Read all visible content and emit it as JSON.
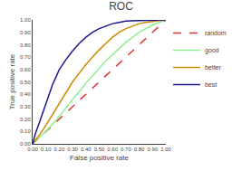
{
  "chart_data": {
    "type": "line",
    "title": "ROC",
    "x_label": "False positive rate",
    "y_label": "True positive rate",
    "xlim": [
      0,
      1.0
    ],
    "ylim": [
      0,
      1.0
    ],
    "xticks": [
      {
        "value": 0.0,
        "label": "0.00"
      },
      {
        "value": 0.1,
        "label": "0.10"
      },
      {
        "value": 0.2,
        "label": "0.20"
      },
      {
        "value": 0.3,
        "label": "0.30"
      },
      {
        "value": 0.4,
        "label": "0.40"
      },
      {
        "value": 0.5,
        "label": "0.50"
      },
      {
        "value": 0.6,
        "label": "0.60"
      },
      {
        "value": 0.7,
        "label": "0.70"
      },
      {
        "value": 0.8,
        "label": "0.80"
      },
      {
        "value": 0.9,
        "label": "0.90"
      },
      {
        "value": 1.0,
        "label": "1.00"
      }
    ],
    "yticks": [
      {
        "value": 0.0,
        "label": "0.00"
      },
      {
        "value": 0.1,
        "label": "0.10"
      },
      {
        "value": 0.2,
        "label": "0.20"
      },
      {
        "value": 0.3,
        "label": "0.30"
      },
      {
        "value": 0.4,
        "label": "0.40"
      },
      {
        "value": 0.5,
        "label": "0.50"
      },
      {
        "value": 0.6,
        "label": "0.60"
      },
      {
        "value": 0.7,
        "label": "0.70"
      },
      {
        "value": 0.8,
        "label": "0.80"
      },
      {
        "value": 0.9,
        "label": "0.90"
      },
      {
        "value": 1.0,
        "label": "1.00"
      }
    ],
    "grid": false,
    "legend": "right",
    "series": [
      {
        "name": "random",
        "color": "#e03030",
        "line_style": "dashed",
        "x": [
          0.0,
          1.0
        ],
        "values": [
          0.0,
          1.0
        ]
      },
      {
        "name": "good",
        "color": "#90ee90",
        "line_style": "solid",
        "x": [
          0.0,
          0.05,
          0.1,
          0.15,
          0.2,
          0.25,
          0.3,
          0.35,
          0.4,
          0.45,
          0.5,
          0.55,
          0.6,
          0.65,
          0.7,
          0.75,
          0.8,
          0.85,
          0.9,
          0.95,
          1.0
        ],
        "values": [
          0.0,
          0.05,
          0.1,
          0.16,
          0.22,
          0.29,
          0.36,
          0.42,
          0.49,
          0.55,
          0.61,
          0.67,
          0.72,
          0.77,
          0.82,
          0.86,
          0.9,
          0.93,
          0.96,
          0.98,
          1.0
        ]
      },
      {
        "name": "better",
        "color": "#cc8800",
        "line_style": "solid",
        "x": [
          0.0,
          0.05,
          0.1,
          0.15,
          0.2,
          0.25,
          0.3,
          0.35,
          0.4,
          0.45,
          0.5,
          0.55,
          0.6,
          0.65,
          0.7,
          0.75,
          0.8,
          0.85,
          0.9,
          0.95,
          1.0
        ],
        "values": [
          0.0,
          0.07,
          0.15,
          0.24,
          0.33,
          0.42,
          0.5,
          0.57,
          0.64,
          0.7,
          0.76,
          0.81,
          0.86,
          0.9,
          0.93,
          0.95,
          0.97,
          0.98,
          0.99,
          0.995,
          1.0
        ]
      },
      {
        "name": "best",
        "color": "#1a1a8c",
        "line_style": "solid",
        "x": [
          0.0,
          0.02,
          0.05,
          0.08,
          0.1,
          0.13,
          0.15,
          0.18,
          0.2,
          0.25,
          0.3,
          0.35,
          0.4,
          0.45,
          0.5,
          0.55,
          0.6,
          0.65,
          0.7,
          0.8,
          0.9,
          1.0
        ],
        "values": [
          0.0,
          0.08,
          0.17,
          0.26,
          0.33,
          0.42,
          0.48,
          0.55,
          0.6,
          0.68,
          0.75,
          0.81,
          0.86,
          0.9,
          0.93,
          0.95,
          0.97,
          0.98,
          0.99,
          0.995,
          0.998,
          1.0
        ]
      }
    ]
  }
}
